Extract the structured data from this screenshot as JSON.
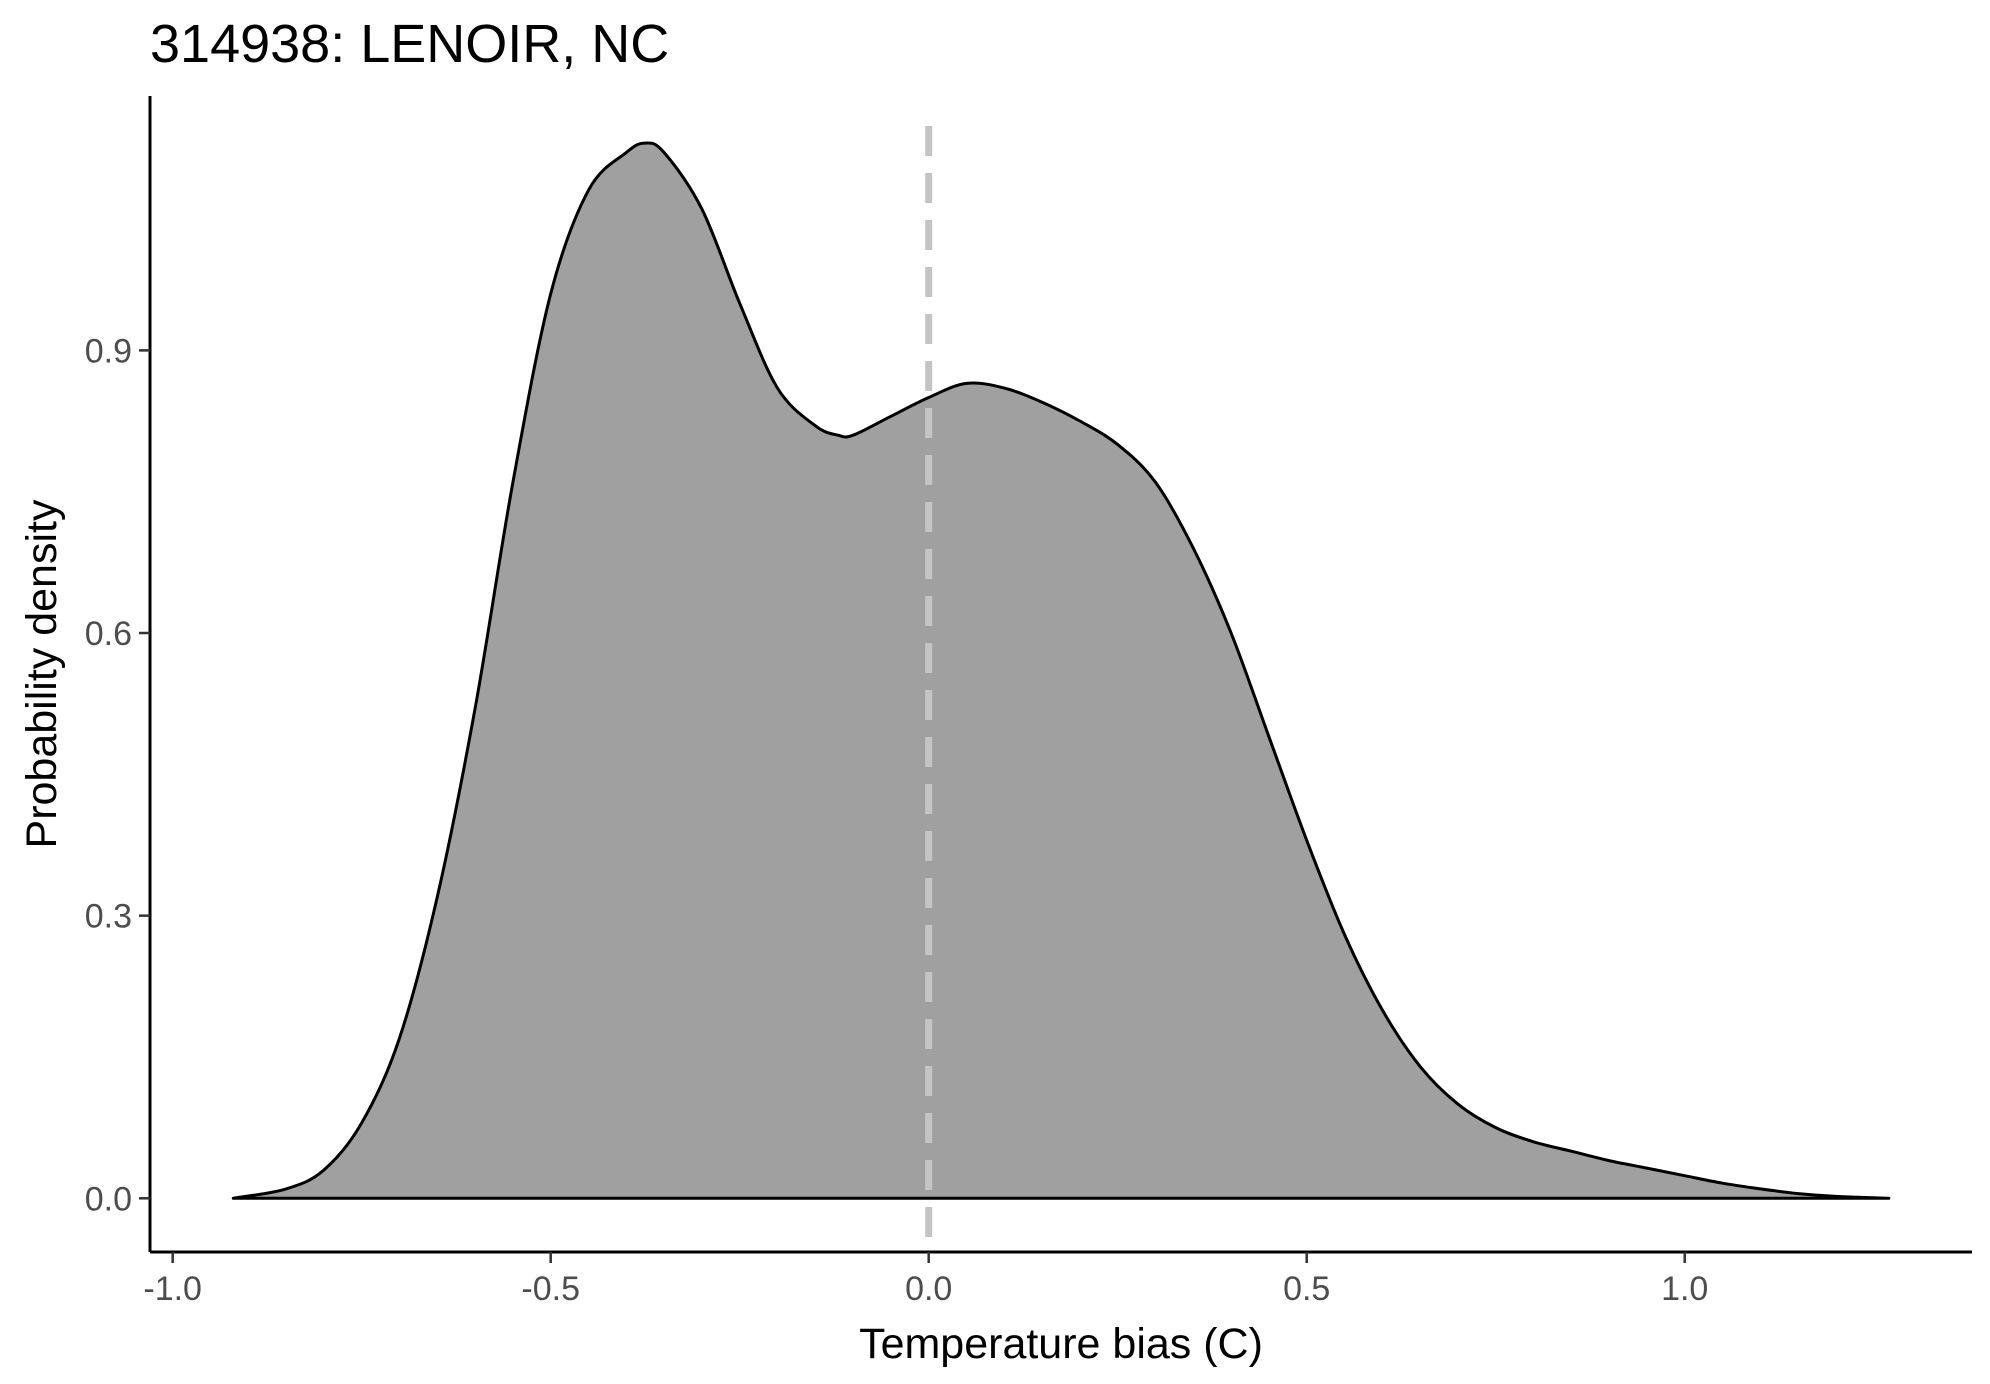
{
  "chart_data": {
    "type": "area",
    "title": "314938: LENOIR, NC",
    "xlabel": "Temperature bias (C)",
    "ylabel": "Probability density",
    "xlim": [
      -1.03,
      1.38
    ],
    "ylim": [
      -0.057,
      1.17
    ],
    "xticks": [
      -1.0,
      -0.5,
      0.0,
      0.5,
      1.0
    ],
    "xtick_labels": [
      "-1.0",
      "-0.5",
      "0.0",
      "0.5",
      "1.0"
    ],
    "yticks": [
      0.0,
      0.3,
      0.6,
      0.9
    ],
    "ytick_labels": [
      "0.0",
      "0.3",
      "0.6",
      "0.9"
    ],
    "grid": false,
    "reference_line": {
      "x": 0.0,
      "style": "dashed",
      "color": "#c4c4c4"
    },
    "fill_color": "#a0a0a0",
    "line_color": "#000000",
    "series": [
      {
        "x": [
          -0.92,
          -0.85,
          -0.8,
          -0.75,
          -0.7,
          -0.65,
          -0.6,
          -0.55,
          -0.5,
          -0.45,
          -0.4,
          -0.375,
          -0.35,
          -0.3,
          -0.25,
          -0.2,
          -0.15,
          -0.12,
          -0.1,
          -0.05,
          0.0,
          0.05,
          0.1,
          0.15,
          0.2,
          0.25,
          0.3,
          0.35,
          0.4,
          0.45,
          0.5,
          0.55,
          0.6,
          0.65,
          0.7,
          0.75,
          0.8,
          0.85,
          0.9,
          0.95,
          1.0,
          1.05,
          1.1,
          1.15,
          1.2,
          1.27
        ],
        "y": [
          0.0,
          0.01,
          0.03,
          0.08,
          0.17,
          0.32,
          0.52,
          0.76,
          0.96,
          1.07,
          1.11,
          1.12,
          1.11,
          1.05,
          0.95,
          0.86,
          0.82,
          0.81,
          0.81,
          0.83,
          0.85,
          0.865,
          0.86,
          0.845,
          0.825,
          0.8,
          0.76,
          0.69,
          0.6,
          0.49,
          0.38,
          0.28,
          0.2,
          0.14,
          0.1,
          0.075,
          0.06,
          0.05,
          0.04,
          0.032,
          0.024,
          0.016,
          0.01,
          0.005,
          0.002,
          0.0
        ]
      }
    ]
  }
}
